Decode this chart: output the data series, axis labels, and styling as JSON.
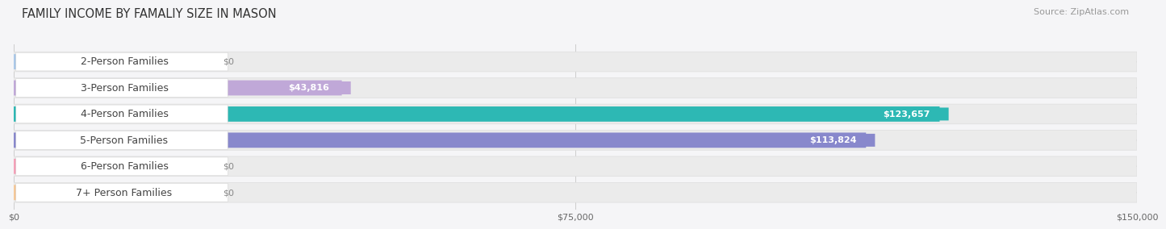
{
  "title": "FAMILY INCOME BY FAMALIY SIZE IN MASON",
  "source": "Source: ZipAtlas.com",
  "categories": [
    "2-Person Families",
    "3-Person Families",
    "4-Person Families",
    "5-Person Families",
    "6-Person Families",
    "7+ Person Families"
  ],
  "values": [
    0,
    43816,
    123657,
    113824,
    0,
    0
  ],
  "bar_colors": [
    "#aac8e8",
    "#c0a8d8",
    "#2db8b4",
    "#8888cc",
    "#f4a0b8",
    "#f5c898"
  ],
  "label_bg_colors": [
    "#aac8e8",
    "#c0a8d8",
    "#2db8b4",
    "#8888cc",
    "#f4a0b8",
    "#f5c898"
  ],
  "value_badge_colors": [
    "#888888",
    "#888888",
    "#2db8b4",
    "#8888cc",
    "#888888",
    "#888888"
  ],
  "x_max": 150000,
  "x_ticks": [
    0,
    75000,
    150000
  ],
  "x_tick_labels": [
    "$0",
    "$75,000",
    "$150,000"
  ],
  "background_color": "#f5f5f7",
  "bar_bg_color": "#ebebeb",
  "title_fontsize": 10.5,
  "source_fontsize": 8,
  "label_fontsize": 8,
  "value_fontsize": 8,
  "category_fontsize": 9
}
